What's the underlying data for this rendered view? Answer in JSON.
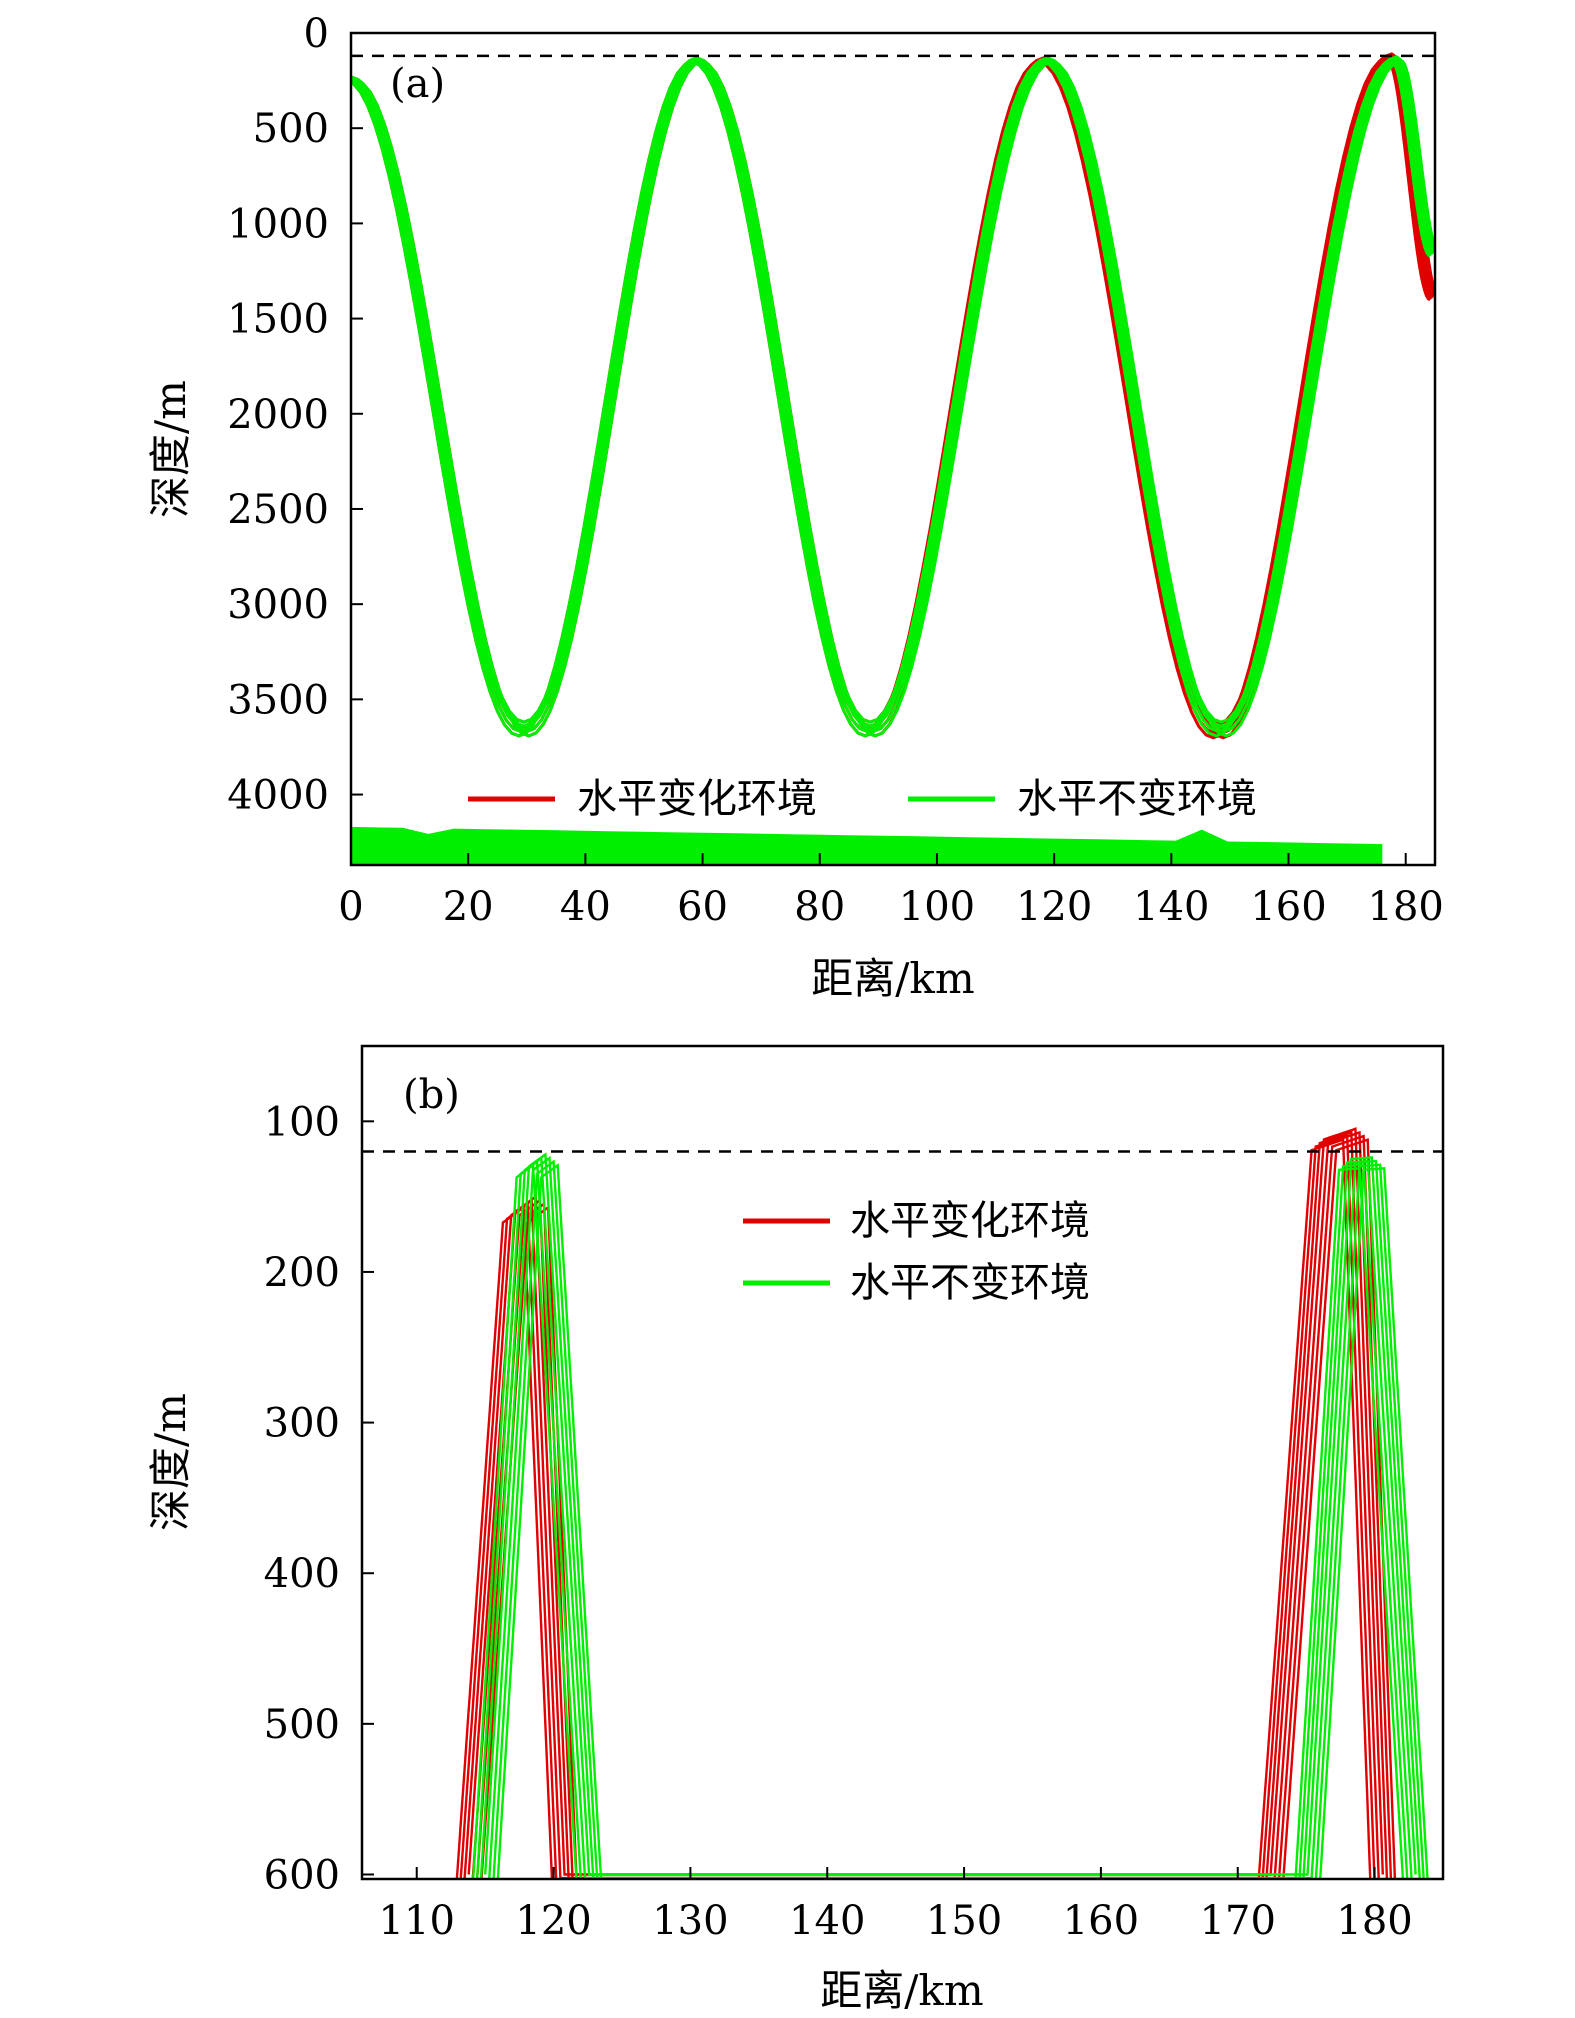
{
  "chart_data": [
    {
      "type": "line",
      "panel_label": "(a)",
      "xlabel": "距离/km",
      "ylabel": "深度/m",
      "xlim": [
        0,
        185
      ],
      "ylim": [
        4370,
        0
      ],
      "y_inverted": true,
      "xticks": [
        "0",
        "20",
        "40",
        "60",
        "80",
        "100",
        "120",
        "140",
        "160",
        "180"
      ],
      "xtick_values": [
        0,
        20,
        40,
        60,
        80,
        100,
        120,
        140,
        160,
        180
      ],
      "yticks": [
        "0",
        "500",
        "1000",
        "1500",
        "2000",
        "2500",
        "3000",
        "3500",
        "4000"
      ],
      "ytick_values": [
        0,
        500,
        1000,
        1500,
        2000,
        2500,
        3000,
        3500,
        4000
      ],
      "reference_line_depth": 120,
      "legend": {
        "placement": "lower-center",
        "layout": "horizontal"
      },
      "series": [
        {
          "name": "水平变化环境",
          "color": "#e00000",
          "values": [
            [
              0,
              230
            ],
            [
              29.5,
              3620
            ],
            [
              59,
              130
            ],
            [
              88.6,
              3620
            ],
            [
              118.2,
              130
            ],
            [
              148,
              3630
            ],
            [
              177.6,
              110
            ],
            [
              185,
              1380
            ]
          ]
        },
        {
          "name": "水平不变环境",
          "color": "#00ee00",
          "values": [
            [
              0,
              230
            ],
            [
              29.5,
              3620
            ],
            [
              59,
              130
            ],
            [
              88.6,
              3620
            ],
            [
              118.8,
              130
            ],
            [
              148.5,
              3620
            ],
            [
              178.4,
              125
            ],
            [
              185,
              1150
            ]
          ]
        }
      ],
      "seafloor": {
        "color": "#00ee00",
        "x_range": [
          0,
          176
        ],
        "depth_top_range": [
          4170,
          4260
        ]
      }
    },
    {
      "type": "line",
      "panel_label": "(b)",
      "xlabel": "距离/km",
      "ylabel": "深度/m",
      "xlim": [
        106,
        185
      ],
      "ylim": [
        603,
        50
      ],
      "y_inverted": true,
      "xticks": [
        "110",
        "120",
        "130",
        "140",
        "150",
        "160",
        "170",
        "180"
      ],
      "xtick_values": [
        110,
        120,
        130,
        140,
        150,
        160,
        170,
        180
      ],
      "yticks": [
        "100",
        "200",
        "300",
        "400",
        "500",
        "600"
      ],
      "ytick_values": [
        100,
        200,
        300,
        400,
        500,
        600
      ],
      "reference_line_depth": 120,
      "legend": {
        "placement": "upper-center",
        "layout": "vertical"
      },
      "series": [
        {
          "name": "水平变化环境",
          "color": "#e00000",
          "values": [
            [
              113.8,
              600
            ],
            [
              117.2,
              160
            ],
            [
              118.7,
              150
            ],
            [
              120.8,
              600
            ],
            [
              172.4,
              600
            ],
            [
              176.3,
              112
            ],
            [
              178.6,
              105
            ],
            [
              180.6,
              600
            ]
          ]
        },
        {
          "name": "水平不变环境",
          "color": "#00ee00",
          "values": [
            [
              115,
              600
            ],
            [
              118.2,
              130
            ],
            [
              119.4,
              122
            ],
            [
              122.6,
              600
            ],
            [
              175.1,
              600
            ],
            [
              178.3,
              125
            ],
            [
              179.8,
              124
            ],
            [
              183,
              600
            ]
          ]
        }
      ]
    }
  ]
}
